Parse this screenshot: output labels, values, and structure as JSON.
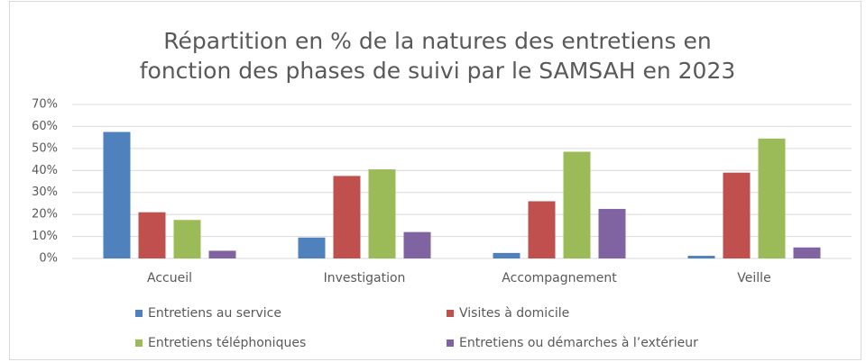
{
  "chart_data": {
    "type": "bar",
    "title": [
      "Répartition en % de la natures des entretiens en",
      "fonction des phases de suivi par le SAMSAH en 2023"
    ],
    "categories": [
      "Accueil",
      "Investigation",
      "Accompagnement",
      "Veille"
    ],
    "series": [
      {
        "name": "Entretiens au service",
        "color": "#4f81bd",
        "values": [
          57.5,
          9.5,
          2.5,
          1.2
        ]
      },
      {
        "name": "Visites à domicile",
        "color": "#c0504d",
        "values": [
          21,
          37.5,
          26,
          39
        ]
      },
      {
        "name": "Entretiens téléphoniques",
        "color": "#9bbb59",
        "values": [
          17.5,
          40.5,
          48.5,
          54.5
        ]
      },
      {
        "name": "Entretiens ou démarches à l’extérieur",
        "color": "#8064a2",
        "values": [
          3.5,
          12,
          22.5,
          5
        ]
      }
    ],
    "ylim": [
      0,
      70
    ],
    "yticks": [
      {
        "value": 0,
        "label": "0%"
      },
      {
        "value": 10,
        "label": "10%"
      },
      {
        "value": 20,
        "label": "20%"
      },
      {
        "value": 30,
        "label": "30%"
      },
      {
        "value": 40,
        "label": "40%"
      },
      {
        "value": 50,
        "label": "50%"
      },
      {
        "value": 60,
        "label": "60%"
      },
      {
        "value": 70,
        "label": "70%"
      }
    ],
    "grid": true,
    "legend": "bottom"
  }
}
